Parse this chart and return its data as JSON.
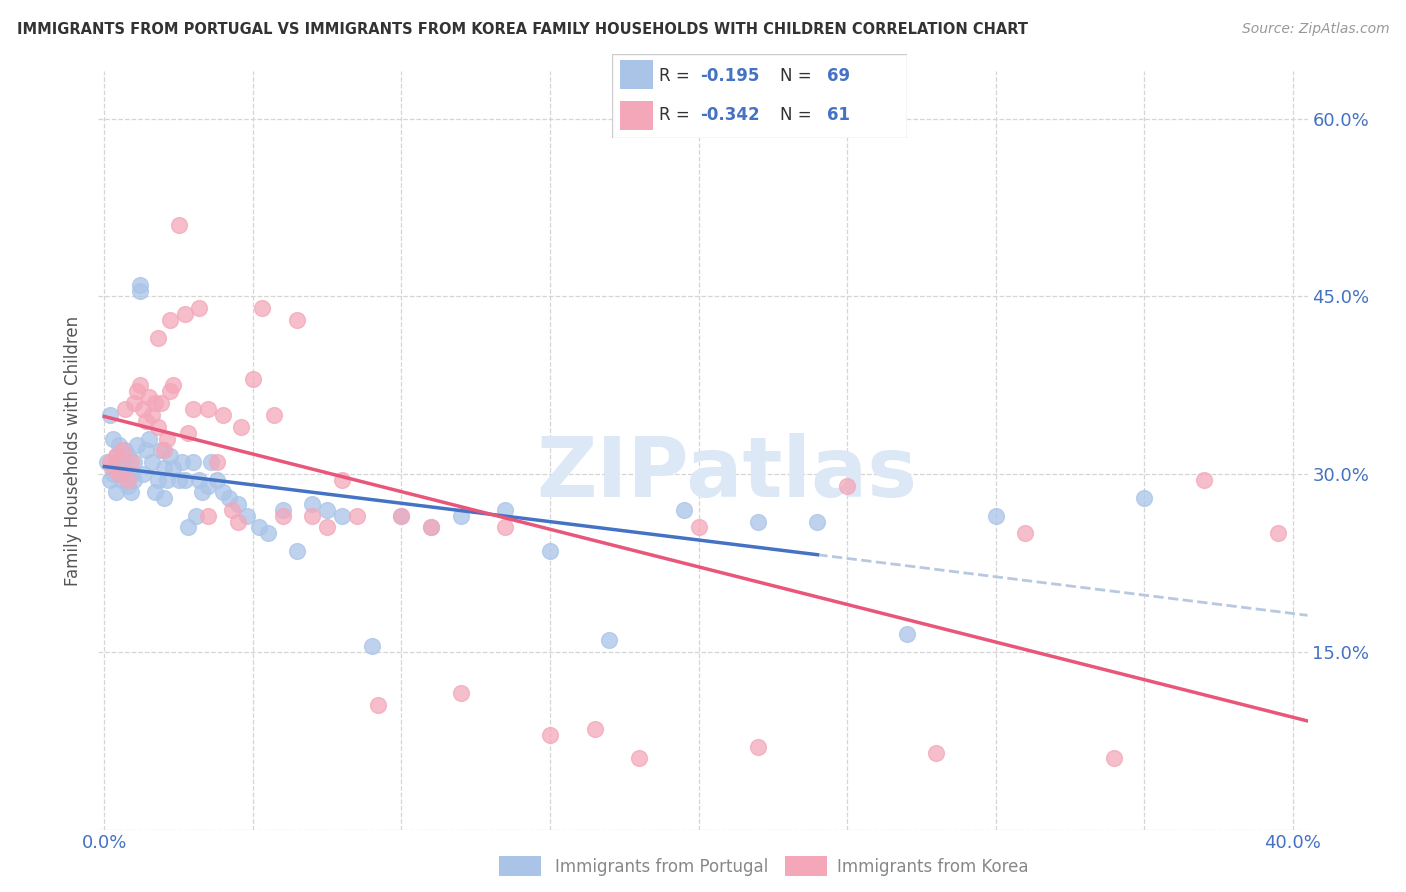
{
  "title": "IMMIGRANTS FROM PORTUGAL VS IMMIGRANTS FROM KOREA FAMILY HOUSEHOLDS WITH CHILDREN CORRELATION CHART",
  "source": "Source: ZipAtlas.com",
  "ylabel": "Family Households with Children",
  "xlim": [
    -0.002,
    0.405
  ],
  "ylim": [
    0.0,
    0.64
  ],
  "portugal_color": "#aac4e8",
  "korea_color": "#f4a7b9",
  "portugal_line_color": "#4472c4",
  "korea_line_color": "#e8567a",
  "trendline_dashed_color": "#b8c8e0",
  "R_portugal": -0.195,
  "N_portugal": 69,
  "R_korea": -0.342,
  "N_korea": 61,
  "watermark": "ZIPatlas",
  "y_tick_positions": [
    0.0,
    0.15,
    0.3,
    0.45,
    0.6
  ],
  "y_tick_labels": [
    "",
    "15.0%",
    "30.0%",
    "45.0%",
    "60.0%"
  ],
  "x_tick_positions": [
    0.0,
    0.05,
    0.1,
    0.15,
    0.2,
    0.25,
    0.3,
    0.35,
    0.4
  ],
  "x_tick_labels": [
    "0.0%",
    "",
    "",
    "",
    "",
    "",
    "",
    "",
    "40.0%"
  ],
  "portugal_scatter_x": [
    0.001,
    0.002,
    0.002,
    0.003,
    0.003,
    0.004,
    0.004,
    0.005,
    0.005,
    0.006,
    0.006,
    0.007,
    0.007,
    0.008,
    0.008,
    0.009,
    0.009,
    0.01,
    0.01,
    0.011,
    0.012,
    0.012,
    0.013,
    0.014,
    0.015,
    0.016,
    0.017,
    0.018,
    0.019,
    0.02,
    0.02,
    0.021,
    0.022,
    0.023,
    0.025,
    0.026,
    0.027,
    0.028,
    0.03,
    0.031,
    0.032,
    0.033,
    0.035,
    0.036,
    0.038,
    0.04,
    0.042,
    0.045,
    0.048,
    0.052,
    0.055,
    0.06,
    0.065,
    0.07,
    0.075,
    0.08,
    0.09,
    0.1,
    0.11,
    0.12,
    0.135,
    0.15,
    0.17,
    0.195,
    0.22,
    0.24,
    0.27,
    0.3,
    0.35
  ],
  "portugal_scatter_y": [
    0.31,
    0.35,
    0.295,
    0.33,
    0.3,
    0.315,
    0.285,
    0.3,
    0.325,
    0.31,
    0.295,
    0.305,
    0.32,
    0.29,
    0.315,
    0.3,
    0.285,
    0.31,
    0.295,
    0.325,
    0.455,
    0.46,
    0.3,
    0.32,
    0.33,
    0.31,
    0.285,
    0.295,
    0.32,
    0.305,
    0.28,
    0.295,
    0.315,
    0.305,
    0.295,
    0.31,
    0.295,
    0.255,
    0.31,
    0.265,
    0.295,
    0.285,
    0.29,
    0.31,
    0.295,
    0.285,
    0.28,
    0.275,
    0.265,
    0.255,
    0.25,
    0.27,
    0.235,
    0.275,
    0.27,
    0.265,
    0.155,
    0.265,
    0.255,
    0.265,
    0.27,
    0.235,
    0.16,
    0.27,
    0.26,
    0.26,
    0.165,
    0.265,
    0.28
  ],
  "korea_scatter_x": [
    0.002,
    0.003,
    0.004,
    0.005,
    0.006,
    0.007,
    0.008,
    0.009,
    0.01,
    0.011,
    0.012,
    0.013,
    0.014,
    0.015,
    0.016,
    0.017,
    0.018,
    0.019,
    0.02,
    0.021,
    0.022,
    0.023,
    0.025,
    0.027,
    0.03,
    0.032,
    0.035,
    0.038,
    0.04,
    0.043,
    0.046,
    0.05,
    0.053,
    0.057,
    0.06,
    0.065,
    0.07,
    0.075,
    0.08,
    0.085,
    0.092,
    0.1,
    0.11,
    0.12,
    0.135,
    0.15,
    0.165,
    0.18,
    0.2,
    0.22,
    0.25,
    0.28,
    0.31,
    0.34,
    0.37,
    0.395,
    0.035,
    0.045,
    0.028,
    0.018,
    0.022
  ],
  "korea_scatter_y": [
    0.31,
    0.305,
    0.315,
    0.3,
    0.32,
    0.355,
    0.295,
    0.31,
    0.36,
    0.37,
    0.375,
    0.355,
    0.345,
    0.365,
    0.35,
    0.36,
    0.34,
    0.36,
    0.32,
    0.33,
    0.37,
    0.375,
    0.51,
    0.435,
    0.355,
    0.44,
    0.355,
    0.31,
    0.35,
    0.27,
    0.34,
    0.38,
    0.44,
    0.35,
    0.265,
    0.43,
    0.265,
    0.255,
    0.295,
    0.265,
    0.105,
    0.265,
    0.255,
    0.115,
    0.255,
    0.08,
    0.085,
    0.06,
    0.255,
    0.07,
    0.29,
    0.065,
    0.25,
    0.06,
    0.295,
    0.25,
    0.265,
    0.26,
    0.335,
    0.415,
    0.43
  ]
}
